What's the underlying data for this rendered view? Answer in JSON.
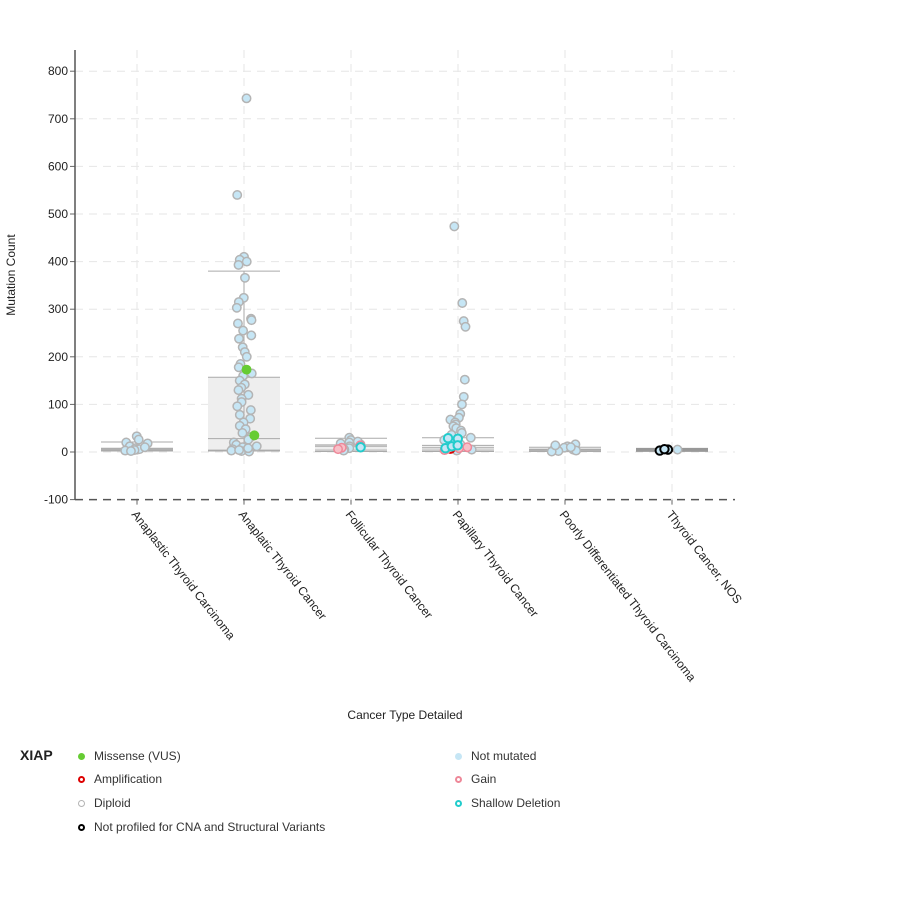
{
  "chart_data": {
    "type": "scatter",
    "subtype": "box-plot-with-jitter",
    "xlabel": "Cancer Type Detailed",
    "ylabel": "Mutation Count",
    "ylim": [
      -100,
      830
    ],
    "yticks": [
      -100,
      0,
      100,
      200,
      300,
      400,
      500,
      600,
      700,
      800
    ],
    "grid": true,
    "categories": [
      "Anaplastic Thyroid Carcinoma",
      "Anaplatic Thyroid Cancer",
      "Follicular Thyroid Cancer",
      "Papillary Thyroid Cancer",
      "Poorly Differentiated Thyroid Carcinoma",
      "Thyroid Cancer, NOS"
    ],
    "boxes": [
      {
        "category": "Anaplastic Thyroid Carcinoma",
        "min": 2,
        "q1": 4,
        "median": 6,
        "q3": 8,
        "max": 21
      },
      {
        "category": "Anaplatic Thyroid Cancer",
        "min": 2,
        "q1": 4,
        "median": 28,
        "q3": 157,
        "max": 380
      },
      {
        "category": "Follicular Thyroid Cancer",
        "min": 1,
        "q1": 4,
        "median": 12,
        "q3": 15,
        "max": 29
      },
      {
        "category": "Papillary Thyroid Cancer",
        "min": 1,
        "q1": 4,
        "median": 9,
        "q3": 14,
        "max": 30
      },
      {
        "category": "Poorly Differentiated Thyroid Carcinoma",
        "min": 1,
        "q1": 3,
        "median": 5,
        "q3": 6,
        "max": 10
      },
      {
        "category": "Thyroid Cancer, NOS",
        "min": 3,
        "q1": 4,
        "median": 5,
        "q3": 5,
        "max": 6
      }
    ],
    "series": [
      {
        "name": "Not mutated",
        "fill": "#c6e6f5",
        "stroke": "#b4b4b4",
        "points": [
          [
            0,
            33
          ],
          [
            0,
            26
          ],
          [
            0,
            20
          ],
          [
            0,
            12
          ],
          [
            0,
            8
          ],
          [
            0,
            5
          ],
          [
            0,
            3
          ],
          [
            0,
            18
          ],
          [
            0,
            6
          ],
          [
            0,
            4
          ],
          [
            0,
            2
          ],
          [
            0,
            10
          ],
          [
            1,
            743
          ],
          [
            1,
            540
          ],
          [
            1,
            410
          ],
          [
            1,
            404
          ],
          [
            1,
            400
          ],
          [
            1,
            393
          ],
          [
            1,
            366
          ],
          [
            1,
            324
          ],
          [
            1,
            315
          ],
          [
            1,
            303
          ],
          [
            1,
            280
          ],
          [
            1,
            277
          ],
          [
            1,
            270
          ],
          [
            1,
            255
          ],
          [
            1,
            245
          ],
          [
            1,
            238
          ],
          [
            1,
            220
          ],
          [
            1,
            210
          ],
          [
            1,
            200
          ],
          [
            1,
            185
          ],
          [
            1,
            178
          ],
          [
            1,
            165
          ],
          [
            1,
            160
          ],
          [
            1,
            150
          ],
          [
            1,
            142
          ],
          [
            1,
            135
          ],
          [
            1,
            130
          ],
          [
            1,
            120
          ],
          [
            1,
            112
          ],
          [
            1,
            105
          ],
          [
            1,
            96
          ],
          [
            1,
            88
          ],
          [
            1,
            78
          ],
          [
            1,
            70
          ],
          [
            1,
            62
          ],
          [
            1,
            55
          ],
          [
            1,
            48
          ],
          [
            1,
            40
          ],
          [
            1,
            32
          ],
          [
            1,
            26
          ],
          [
            1,
            20
          ],
          [
            1,
            15
          ],
          [
            1,
            10
          ],
          [
            1,
            6
          ],
          [
            1,
            3
          ],
          [
            1,
            2
          ],
          [
            1,
            1
          ],
          [
            1,
            8
          ],
          [
            1,
            12
          ],
          [
            1,
            4
          ],
          [
            2,
            30
          ],
          [
            2,
            25
          ],
          [
            2,
            20
          ],
          [
            2,
            16
          ],
          [
            2,
            12
          ],
          [
            2,
            8
          ],
          [
            2,
            5
          ],
          [
            2,
            3
          ],
          [
            2,
            22
          ],
          [
            2,
            18
          ],
          [
            3,
            474
          ],
          [
            3,
            313
          ],
          [
            3,
            275
          ],
          [
            3,
            263
          ],
          [
            3,
            152
          ],
          [
            3,
            116
          ],
          [
            3,
            100
          ],
          [
            3,
            80
          ],
          [
            3,
            72
          ],
          [
            3,
            68
          ],
          [
            3,
            62
          ],
          [
            3,
            58
          ],
          [
            3,
            54
          ],
          [
            3,
            50
          ],
          [
            3,
            45
          ],
          [
            3,
            40
          ],
          [
            3,
            36
          ],
          [
            3,
            30
          ],
          [
            3,
            25
          ],
          [
            3,
            20
          ],
          [
            3,
            16
          ],
          [
            3,
            12
          ],
          [
            3,
            8
          ],
          [
            3,
            5
          ],
          [
            3,
            3
          ],
          [
            4,
            16
          ],
          [
            4,
            12
          ],
          [
            4,
            9
          ],
          [
            4,
            7
          ],
          [
            4,
            5
          ],
          [
            4,
            3
          ],
          [
            4,
            2
          ],
          [
            4,
            1
          ],
          [
            4,
            14
          ],
          [
            4,
            10
          ],
          [
            5,
            5
          ]
        ]
      },
      {
        "name": "Missense (VUS)",
        "fill": "#66cc33",
        "stroke": "#66cc33",
        "points": [
          [
            1,
            173
          ],
          [
            1,
            35
          ]
        ]
      },
      {
        "name": "Amplification",
        "fill": "#ffffff",
        "stroke": "#dd0000",
        "points": [
          [
            3,
            7
          ]
        ]
      },
      {
        "name": "Gain",
        "fill": "#f7c0c8",
        "stroke": "#ee8899",
        "points": [
          [
            2,
            14
          ],
          [
            2,
            9
          ],
          [
            2,
            6
          ],
          [
            3,
            6
          ],
          [
            3,
            4
          ],
          [
            3,
            8
          ],
          [
            3,
            10
          ]
        ]
      },
      {
        "name": "Shallow Deletion",
        "fill": "#c6e6f5",
        "stroke": "#22cccc",
        "points": [
          [
            2,
            10
          ],
          [
            3,
            29
          ],
          [
            3,
            28
          ],
          [
            3,
            8
          ],
          [
            3,
            12
          ],
          [
            3,
            14
          ]
        ]
      },
      {
        "name": "Not profiled for CNA and Structural Variants",
        "fill": "#c6e6f5",
        "stroke": "#000000",
        "points": [
          [
            5,
            3
          ],
          [
            5,
            5
          ],
          [
            5,
            6
          ]
        ]
      }
    ],
    "legend_position": "bottom"
  },
  "legend": {
    "title": "XIAP",
    "items": [
      {
        "label": "Missense (VUS)",
        "symbol": "filled",
        "color": "#66cc33"
      },
      {
        "label": "Amplification",
        "symbol": "ring",
        "color": "#dd0000"
      },
      {
        "label": "Diploid",
        "symbol": "ring",
        "color": "#b4b4b4"
      },
      {
        "label": "Not profiled for CNA and Structural Variants",
        "symbol": "ring",
        "color": "#000000"
      },
      {
        "label": "Not mutated",
        "symbol": "filled",
        "color": "#c6e6f5"
      },
      {
        "label": "Gain",
        "symbol": "ring",
        "color": "#ee8899"
      },
      {
        "label": "Shallow Deletion",
        "symbol": "ring",
        "color": "#22cccc"
      }
    ]
  }
}
